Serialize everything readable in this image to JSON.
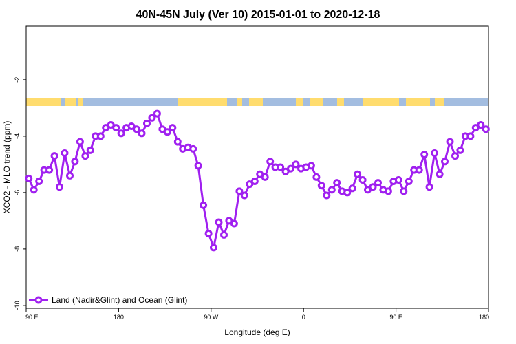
{
  "chart_data": {
    "type": "line",
    "title": "40N-45N July (Ver 10)   2015-01-01 to 2020-12-18",
    "xlabel": "Longitude (deg E)",
    "ylabel": "XCO2 - MLO trend (ppm)",
    "x_ticks": [
      {
        "value": 90,
        "label": "90 E"
      },
      {
        "value": 180,
        "label": "180"
      },
      {
        "value": 270,
        "label": "90 W"
      },
      {
        "value": 360,
        "label": "0"
      },
      {
        "value": 450,
        "label": "90 E"
      },
      {
        "value": 540,
        "label": "180"
      }
    ],
    "y_ticks": [
      {
        "value": -2,
        "label": "-2"
      },
      {
        "value": -4,
        "label": "-4"
      },
      {
        "value": -6,
        "label": "-6"
      },
      {
        "value": -8,
        "label": "-8"
      },
      {
        "value": -10,
        "label": "-10"
      }
    ],
    "xlim": [
      90,
      540
    ],
    "ylim": [
      -10.1,
      -0.1
    ],
    "grid": false,
    "legend_position": "bottom-left",
    "series": [
      {
        "name": "Land (Nadir&Glint) and Ocean (Glint)",
        "color": "#a020f0",
        "x": [
          92.5,
          97.5,
          102.5,
          107.5,
          112.5,
          117.5,
          122.5,
          127.5,
          132.5,
          137.5,
          142.5,
          147.5,
          152.5,
          157.5,
          162.5,
          167.5,
          172.5,
          177.5,
          182.5,
          187.5,
          192.5,
          197.5,
          202.5,
          207.5,
          212.5,
          217.5,
          222.5,
          227.5,
          232.5,
          237.5,
          242.5,
          247.5,
          252.5,
          257.5,
          262.5,
          267.5,
          272.5,
          277.5,
          282.5,
          287.5,
          292.5,
          297.5,
          302.5,
          307.5,
          312.5,
          317.5,
          322.5,
          327.5,
          332.5,
          337.5,
          342.5,
          347.5,
          352.5,
          357.5,
          362.5,
          367.5,
          372.5,
          377.5,
          382.5,
          387.5,
          392.5,
          397.5,
          402.5,
          407.5,
          412.5,
          417.5,
          422.5,
          427.5,
          432.5,
          437.5,
          442.5,
          447.5,
          452.5,
          457.5,
          462.5,
          467.5,
          472.5,
          477.5,
          482.5,
          487.5,
          492.5,
          497.5,
          502.5,
          507.5,
          512.5,
          517.5,
          522.5,
          527.5,
          532.5,
          537.5
        ],
        "values": [
          -5.5,
          -5.9,
          -5.6,
          -5.2,
          -5.2,
          -4.7,
          -5.8,
          -4.6,
          -5.4,
          -4.9,
          -4.2,
          -4.7,
          -4.5,
          -4.0,
          -4.0,
          -3.7,
          -3.6,
          -3.7,
          -3.9,
          -3.7,
          -3.65,
          -3.75,
          -3.9,
          -3.55,
          -3.35,
          -3.2,
          -3.75,
          -3.85,
          -3.7,
          -4.2,
          -4.45,
          -4.4,
          -4.45,
          -5.05,
          -6.45,
          -7.45,
          -7.95,
          -7.05,
          -7.5,
          -7.0,
          -7.1,
          -5.95,
          -6.1,
          -5.7,
          -5.6,
          -5.35,
          -5.45,
          -4.9,
          -5.1,
          -5.1,
          -5.25,
          -5.15,
          -5.0,
          -5.15,
          -5.1,
          -5.05,
          -5.45,
          -5.75,
          -6.1,
          -5.9,
          -5.65,
          -5.95,
          -6.0,
          -5.85,
          -5.35,
          -5.55,
          -5.9,
          -5.8,
          -5.65,
          -5.9,
          -5.95,
          -5.6,
          -5.55,
          -5.95,
          -5.6,
          -5.2,
          -5.2,
          -4.65,
          -5.8,
          -4.6,
          -5.35,
          -4.9,
          -4.2,
          -4.7,
          -4.5,
          -4.0,
          -4.0,
          -3.7,
          -3.6,
          -3.75
        ]
      }
    ],
    "surface_strip": {
      "ocean_color": "#a3bde0",
      "land_color": "#ffdc6e"
    }
  }
}
